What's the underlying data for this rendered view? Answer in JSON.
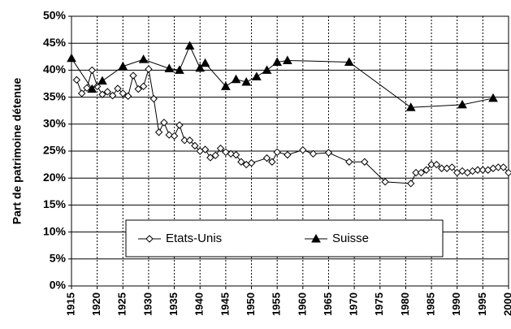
{
  "chart_data": {
    "type": "line",
    "y_label": "Part de patrimoine détenue",
    "xlim": [
      1915,
      2000
    ],
    "xticks": [
      1915,
      1920,
      1925,
      1930,
      1935,
      1940,
      1945,
      1950,
      1955,
      1960,
      1965,
      1970,
      1975,
      1980,
      1985,
      1990,
      1995,
      2000
    ],
    "ylim": [
      0,
      50
    ],
    "yticks": [
      {
        "value": 0,
        "label": "0%"
      },
      {
        "value": 5,
        "label": "5%"
      },
      {
        "value": 10,
        "label": "10%"
      },
      {
        "value": 15,
        "label": "15%"
      },
      {
        "value": 20,
        "label": "20%"
      },
      {
        "value": 25,
        "label": "25%"
      },
      {
        "value": 30,
        "label": "30%"
      },
      {
        "value": 35,
        "label": "35%"
      },
      {
        "value": 40,
        "label": "40%"
      },
      {
        "value": 45,
        "label": "45%"
      },
      {
        "value": 50,
        "label": "50%"
      }
    ],
    "grid": true,
    "series": [
      {
        "name": "Etats-Unis",
        "color": "#000000",
        "marker": "diamond",
        "x": [
          1916,
          1917,
          1918,
          1919,
          1920,
          1921,
          1922,
          1923,
          1924,
          1925,
          1926,
          1927,
          1928,
          1929,
          1930,
          1931,
          1932,
          1933,
          1934,
          1935,
          1936,
          1937,
          1938,
          1939,
          1940,
          1941,
          1942,
          1943,
          1944,
          1945,
          1946,
          1947,
          1948,
          1949,
          1950,
          1953,
          1954,
          1955,
          1957,
          1960,
          1962,
          1965,
          1969,
          1972,
          1976,
          1981,
          1982,
          1983,
          1984,
          1985,
          1986,
          1987,
          1988,
          1989,
          1990,
          1991,
          1992,
          1993,
          1994,
          1995,
          1996,
          1997,
          1998,
          1999,
          2000
        ],
        "values": [
          38.2,
          35.7,
          36.7,
          40.0,
          37.0,
          35.5,
          36.0,
          35.3,
          36.6,
          35.7,
          35.2,
          39.0,
          36.5,
          37.0,
          40.2,
          34.7,
          28.5,
          30.3,
          28.0,
          27.8,
          29.8,
          27.0,
          27.0,
          26.0,
          25.0,
          25.3,
          23.8,
          24.2,
          25.5,
          24.8,
          24.5,
          24.3,
          23.0,
          22.5,
          22.8,
          23.7,
          23.0,
          24.8,
          24.3,
          25.2,
          24.5,
          24.7,
          23.0,
          23.0,
          19.3,
          19.0,
          21.0,
          21.0,
          21.5,
          22.5,
          22.5,
          21.8,
          21.8,
          22.0,
          21.0,
          21.3,
          21.0,
          21.3,
          21.5,
          21.5,
          21.5,
          21.8,
          22.0,
          22.0,
          21.0
        ]
      },
      {
        "name": "Suisse",
        "color": "#000000",
        "marker": "triangle",
        "x": [
          1915,
          1919,
          1921,
          1925,
          1929,
          1934,
          1936,
          1938,
          1940,
          1941,
          1945,
          1947,
          1949,
          1951,
          1953,
          1955,
          1957,
          1969,
          1981,
          1991,
          1997
        ],
        "values": [
          42.2,
          36.5,
          38.0,
          40.7,
          42.0,
          40.3,
          40.0,
          44.5,
          40.4,
          41.3,
          37.0,
          38.3,
          37.8,
          38.8,
          40.0,
          41.5,
          41.8,
          41.5,
          33.1,
          33.6,
          34.8
        ]
      }
    ]
  }
}
